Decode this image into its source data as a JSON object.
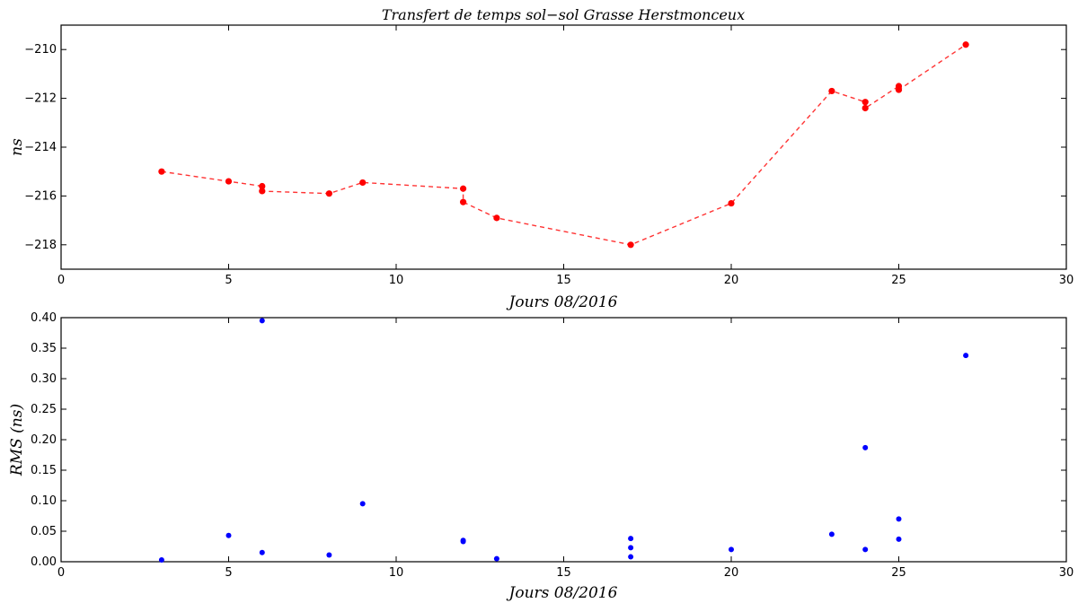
{
  "chart_data": [
    {
      "type": "line",
      "title": "Transfert de temps sol−sol Grasse Herstmonceux",
      "xlabel": "Jours 08/2016",
      "ylabel": "ns",
      "xlim": [
        0,
        30
      ],
      "ylim": [
        -219,
        -209
      ],
      "xticks": [
        0,
        5,
        10,
        15,
        20,
        25,
        30
      ],
      "xtick_labels": [
        "0",
        "5",
        "10",
        "15",
        "20",
        "25",
        "30"
      ],
      "yticks": [
        -210,
        -212,
        -214,
        -216,
        -218
      ],
      "ytick_labels": [
        "−210",
        "−212",
        "−214",
        "−216",
        "−218"
      ],
      "grid": false,
      "series": [
        {
          "color": "#ff0000",
          "line_style": "dashed",
          "marker": "circle",
          "x": [
            3,
            5,
            6,
            6,
            8,
            9,
            12,
            12,
            13,
            17,
            20,
            23,
            24,
            24,
            25,
            25,
            27
          ],
          "y": [
            -215.0,
            -215.4,
            -215.6,
            -215.8,
            -215.9,
            -215.45,
            -215.7,
            -216.25,
            -216.9,
            -218.0,
            -216.3,
            -211.7,
            -212.15,
            -212.4,
            -211.5,
            -211.65,
            -209.8
          ]
        }
      ]
    },
    {
      "type": "scatter",
      "title": "",
      "xlabel": "Jours 08/2016",
      "ylabel": "RMS (ns)",
      "xlim": [
        0,
        30
      ],
      "ylim": [
        0,
        0.4
      ],
      "xticks": [
        0,
        5,
        10,
        15,
        20,
        25,
        30
      ],
      "xtick_labels": [
        "0",
        "5",
        "10",
        "15",
        "20",
        "25",
        "30"
      ],
      "yticks": [
        0.0,
        0.05,
        0.1,
        0.15,
        0.2,
        0.25,
        0.3,
        0.35,
        0.4
      ],
      "ytick_labels": [
        "0.00",
        "0.05",
        "0.10",
        "0.15",
        "0.20",
        "0.25",
        "0.30",
        "0.35",
        "0.40"
      ],
      "grid": false,
      "series": [
        {
          "color": "#0000ff",
          "marker": "circle",
          "x": [
            3,
            5,
            6,
            6,
            8,
            9,
            12,
            12,
            13,
            17,
            17,
            17,
            20,
            23,
            24,
            24,
            25,
            25,
            27
          ],
          "y": [
            0.003,
            0.043,
            0.395,
            0.015,
            0.011,
            0.095,
            0.033,
            0.035,
            0.005,
            0.038,
            0.023,
            0.008,
            0.02,
            0.045,
            0.02,
            0.187,
            0.07,
            0.037,
            0.338
          ]
        }
      ]
    }
  ]
}
